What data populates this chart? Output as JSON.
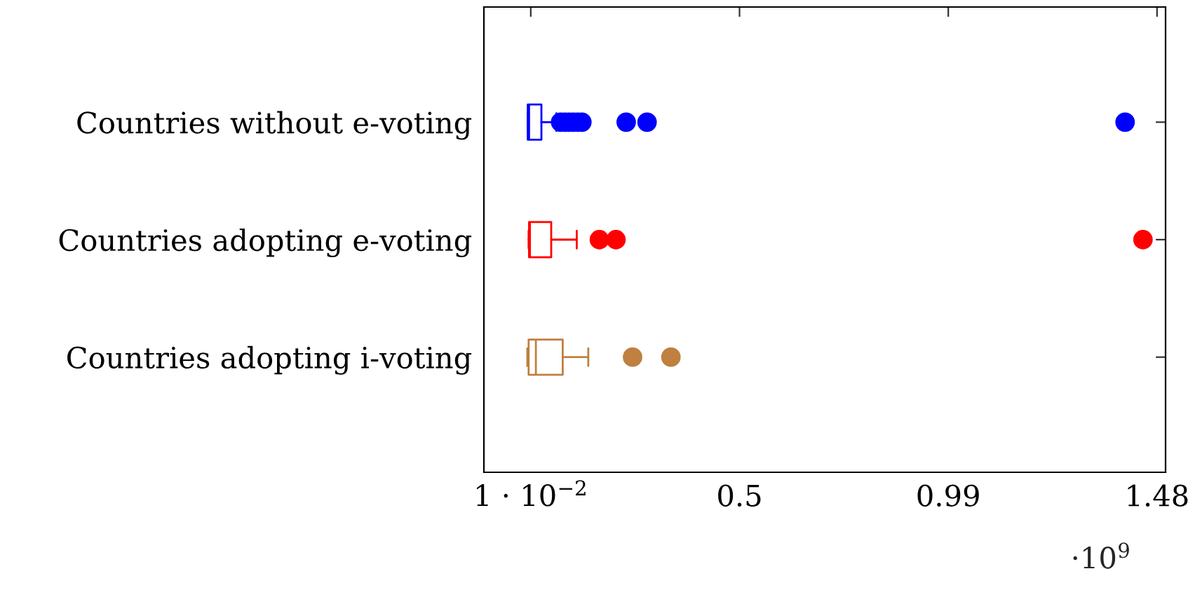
{
  "chart_data": {
    "type": "box",
    "orientation": "horizontal",
    "categories": [
      "Countries without e-voting",
      "Countries adopting e-voting",
      "Countries adopting i-voting"
    ],
    "colors": [
      "#0000ff",
      "#ff0000",
      "#bf8040"
    ],
    "boxes": [
      {
        "low": 0.003,
        "q1": 0.003,
        "median": 0.006,
        "q3": 0.035,
        "high": 0.07,
        "outliers": [
          0.08,
          0.09,
          0.1,
          0.11,
          0.12,
          0.13,
          0.234,
          0.283,
          1.405
        ]
      },
      {
        "low": 0.005,
        "q1": 0.006,
        "median": 0.008,
        "q3": 0.058,
        "high": 0.118,
        "outliers": [
          0.171,
          0.21,
          1.447
        ]
      },
      {
        "low": 0.002,
        "q1": 0.005,
        "median": 0.022,
        "q3": 0.085,
        "high": 0.145,
        "outliers": [
          0.249,
          0.339
        ]
      }
    ],
    "xlim": [
      -0.1,
      1.5
    ],
    "xticks": [
      {
        "value": 0.01,
        "label": "1 · 10$^{−2}$"
      },
      0.5,
      0.99,
      1.48
    ],
    "annotations": [
      "·10$^{9}$"
    ],
    "grid": false
  }
}
